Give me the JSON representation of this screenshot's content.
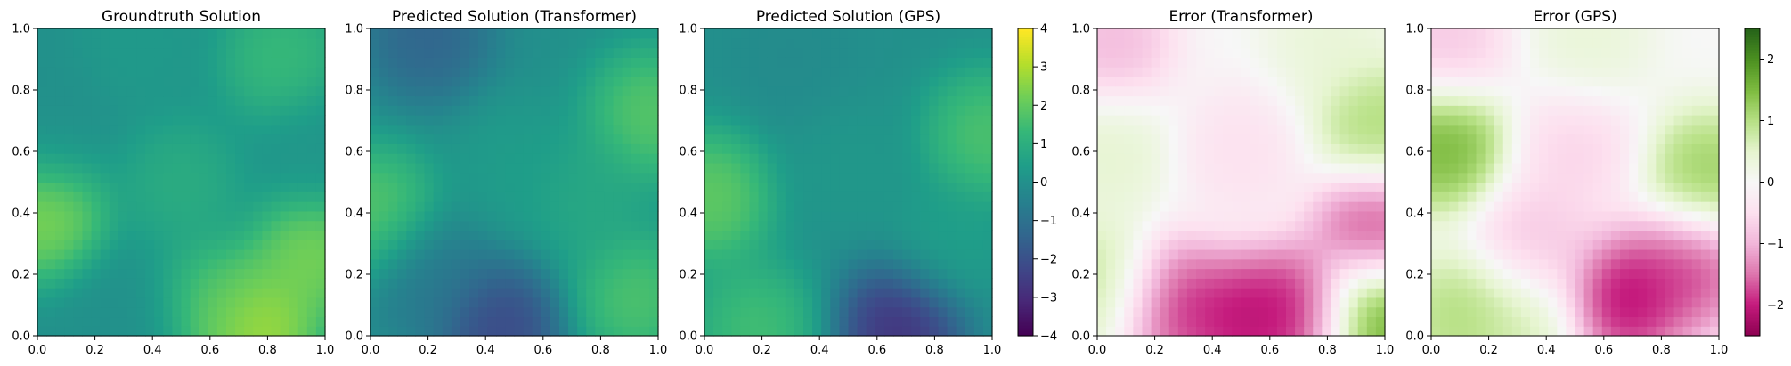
{
  "chart_data": [
    {
      "type": "heatmap",
      "title": "Groundtruth Solution",
      "xlim": [
        0.0,
        1.0
      ],
      "ylim": [
        0.0,
        1.0
      ],
      "xticks": [
        "0.0",
        "0.2",
        "0.4",
        "0.6",
        "0.8",
        "1.0"
      ],
      "yticks": [
        "0.0",
        "0.2",
        "0.4",
        "0.6",
        "0.8",
        "1.0"
      ],
      "colormap": "viridis",
      "value_range": [
        -4,
        4
      ],
      "grid": false,
      "features": [
        {
          "x": 0.02,
          "y": 0.4,
          "value": 3.2
        },
        {
          "x": 0.76,
          "y": 0.02,
          "value": 3.8
        },
        {
          "x": 0.96,
          "y": 0.27,
          "value": 3.0
        },
        {
          "x": 0.62,
          "y": 0.1,
          "value": 2.0
        },
        {
          "x": 0.3,
          "y": 0.05,
          "value": 0.0
        },
        {
          "x": 0.5,
          "y": 0.5,
          "value": 1.2
        },
        {
          "x": 0.05,
          "y": 0.65,
          "value": 0.0
        },
        {
          "x": 0.35,
          "y": 0.95,
          "value": 0.4
        },
        {
          "x": 0.85,
          "y": 0.9,
          "value": 1.8
        },
        {
          "x": 0.97,
          "y": 0.6,
          "value": 0.2
        }
      ]
    },
    {
      "type": "heatmap",
      "title": "Predicted Solution (Transformer)",
      "xlim": [
        0.0,
        1.0
      ],
      "ylim": [
        0.0,
        1.0
      ],
      "xticks": [
        "0.0",
        "0.2",
        "0.4",
        "0.6",
        "0.8",
        "1.0"
      ],
      "yticks": [
        "0.0",
        "0.2",
        "0.4",
        "0.6",
        "0.8",
        "1.0"
      ],
      "colormap": "viridis",
      "value_range": [
        -4,
        4
      ],
      "grid": false,
      "features": [
        {
          "x": 0.02,
          "y": 0.4,
          "value": 2.4
        },
        {
          "x": 0.97,
          "y": 0.72,
          "value": 2.4
        },
        {
          "x": 0.92,
          "y": 0.12,
          "value": 2.2
        },
        {
          "x": 0.45,
          "y": 0.02,
          "value": -2.8
        },
        {
          "x": 0.2,
          "y": 0.98,
          "value": -1.8
        },
        {
          "x": 0.5,
          "y": 0.55,
          "value": 0.5
        },
        {
          "x": 0.2,
          "y": 0.2,
          "value": -1.0
        },
        {
          "x": 0.75,
          "y": 0.45,
          "value": 1.0
        }
      ]
    },
    {
      "type": "heatmap",
      "title": "Predicted Solution (GPS)",
      "xlim": [
        0.0,
        1.0
      ],
      "ylim": [
        0.0,
        1.0
      ],
      "xticks": [
        "0.0",
        "0.2",
        "0.4",
        "0.6",
        "0.8",
        "1.0"
      ],
      "yticks": [
        "0.0",
        "0.2",
        "0.4",
        "0.6",
        "0.8",
        "1.0"
      ],
      "colormap": "viridis",
      "value_range": [
        -4,
        4
      ],
      "grid": false,
      "features": [
        {
          "x": 0.02,
          "y": 0.45,
          "value": 2.6
        },
        {
          "x": 0.98,
          "y": 0.65,
          "value": 2.2
        },
        {
          "x": 0.18,
          "y": 0.02,
          "value": 2.0
        },
        {
          "x": 0.68,
          "y": 0.02,
          "value": -3.6
        },
        {
          "x": 0.5,
          "y": 0.55,
          "value": 0.3
        },
        {
          "x": 0.3,
          "y": 0.9,
          "value": -0.2
        },
        {
          "x": 0.85,
          "y": 0.3,
          "value": 0.6
        }
      ]
    },
    {
      "type": "heatmap",
      "title": "Error (Transformer)",
      "xlim": [
        0.0,
        1.0
      ],
      "ylim": [
        0.0,
        1.0
      ],
      "xticks": [
        "0.0",
        "0.2",
        "0.4",
        "0.6",
        "0.8",
        "1.0"
      ],
      "yticks": [
        "0.0",
        "0.2",
        "0.4",
        "0.6",
        "0.8",
        "1.0"
      ],
      "colormap": "PiYG",
      "value_range": [
        -2.5,
        2.5
      ],
      "grid": false,
      "features": [
        {
          "x": 0.5,
          "y": 0.05,
          "value": -2.6
        },
        {
          "x": 0.25,
          "y": 0.1,
          "value": -2.4
        },
        {
          "x": 0.7,
          "y": 0.08,
          "value": -2.5
        },
        {
          "x": 0.96,
          "y": 0.35,
          "value": -2.2
        },
        {
          "x": 0.96,
          "y": 0.06,
          "value": 2.2
        },
        {
          "x": 0.97,
          "y": 0.68,
          "value": 1.4
        },
        {
          "x": 0.03,
          "y": 0.16,
          "value": 1.2
        },
        {
          "x": 0.04,
          "y": 0.6,
          "value": 0.6
        },
        {
          "x": 0.05,
          "y": 0.95,
          "value": -1.2
        },
        {
          "x": 0.5,
          "y": 0.6,
          "value": -0.6
        },
        {
          "x": 0.8,
          "y": 0.96,
          "value": 0.5
        }
      ]
    },
    {
      "type": "heatmap",
      "title": "Error (GPS)",
      "xlim": [
        0.0,
        1.0
      ],
      "ylim": [
        0.0,
        1.0
      ],
      "xticks": [
        "0.0",
        "0.2",
        "0.4",
        "0.6",
        "0.8",
        "1.0"
      ],
      "yticks": [
        "0.0",
        "0.2",
        "0.4",
        "0.6",
        "0.8",
        "1.0"
      ],
      "colormap": "PiYG",
      "value_range": [
        -2.5,
        2.5
      ],
      "grid": false,
      "features": [
        {
          "x": 0.68,
          "y": 0.12,
          "value": -2.7
        },
        {
          "x": 0.9,
          "y": 0.22,
          "value": -2.2
        },
        {
          "x": 0.05,
          "y": 0.62,
          "value": 2.0
        },
        {
          "x": 0.96,
          "y": 0.52,
          "value": 1.6
        },
        {
          "x": 0.12,
          "y": 0.06,
          "value": 1.4
        },
        {
          "x": 0.3,
          "y": 0.03,
          "value": 0.8
        },
        {
          "x": 0.06,
          "y": 0.95,
          "value": -1.0
        },
        {
          "x": 0.55,
          "y": 0.97,
          "value": 0.5
        },
        {
          "x": 0.5,
          "y": 0.6,
          "value": -0.8
        },
        {
          "x": 0.35,
          "y": 0.3,
          "value": -1.0
        }
      ]
    }
  ],
  "colorbars": [
    {
      "colormap": "viridis",
      "range": [
        -4,
        4
      ],
      "ticks": [
        "4",
        "3",
        "2",
        "1",
        "0",
        "−1",
        "−2",
        "−3",
        "−4"
      ]
    },
    {
      "colormap": "PiYG",
      "range": [
        -2.5,
        2.5
      ],
      "ticks": [
        "2",
        "1",
        "0",
        "−1",
        "−2"
      ]
    }
  ]
}
